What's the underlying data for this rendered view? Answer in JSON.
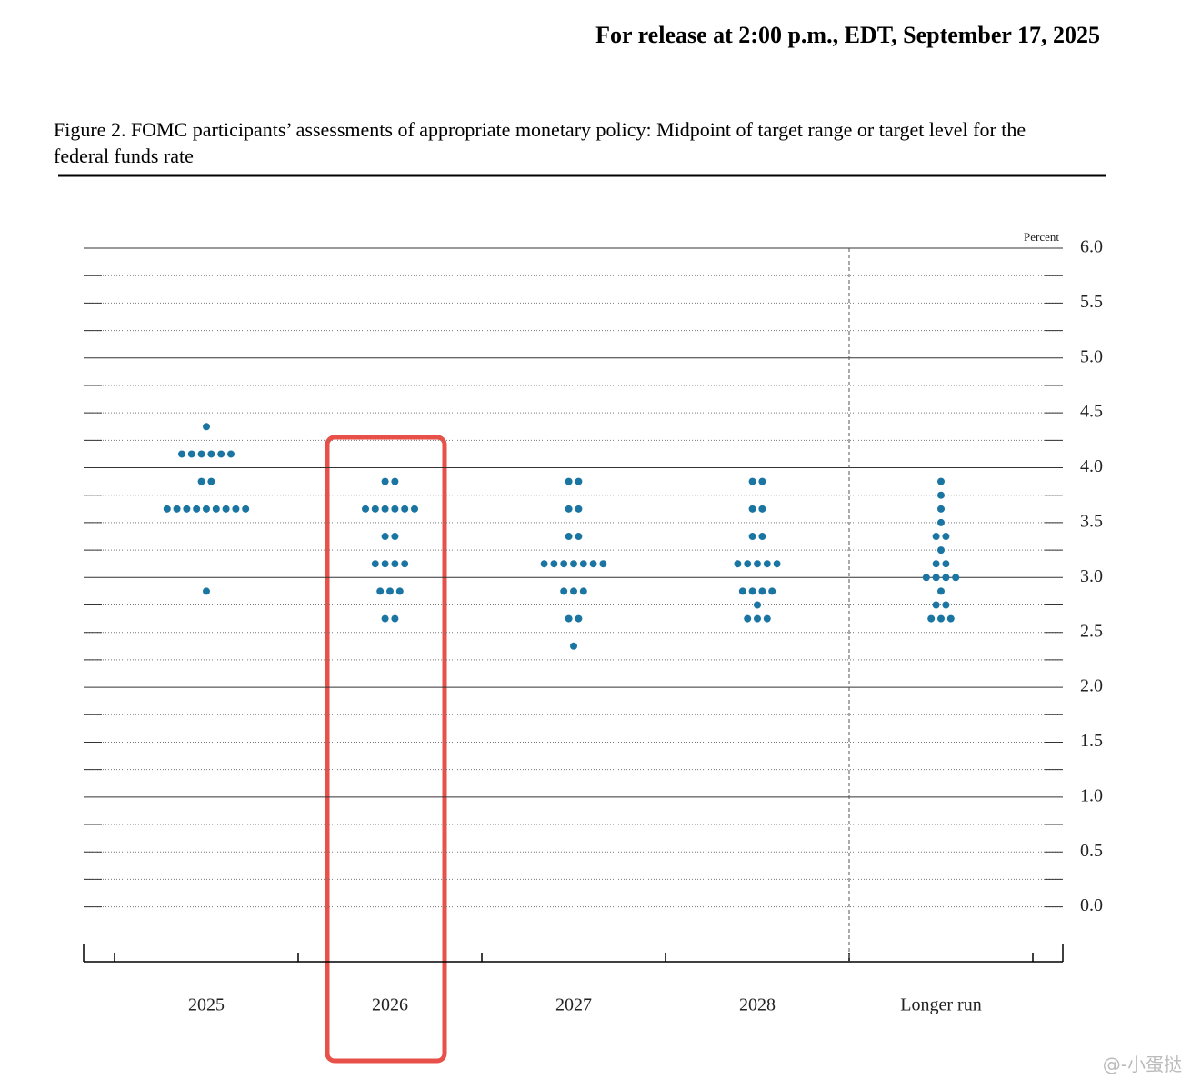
{
  "header": "For release at 2:00 p.m., EDT, September 17, 2025",
  "chart_data": {
    "type": "dot",
    "title": "Figure 2. FOMC participants’ assessments of appropriate monetary policy: Midpoint of target range or target level for the federal funds rate",
    "y_axis_label": "Percent",
    "categories": [
      "2025",
      "2026",
      "2027",
      "2028",
      "Longer run"
    ],
    "values": [
      [
        4.375,
        4.125,
        4.125,
        4.125,
        4.125,
        4.125,
        4.125,
        3.875,
        3.875,
        3.625,
        3.625,
        3.625,
        3.625,
        3.625,
        3.625,
        3.625,
        3.625,
        3.625,
        2.875
      ],
      [
        3.875,
        3.875,
        3.625,
        3.625,
        3.625,
        3.625,
        3.625,
        3.625,
        3.375,
        3.375,
        3.125,
        3.125,
        3.125,
        3.125,
        2.875,
        2.875,
        2.875,
        2.625,
        2.625
      ],
      [
        3.875,
        3.875,
        3.625,
        3.625,
        3.375,
        3.375,
        3.125,
        3.125,
        3.125,
        3.125,
        3.125,
        3.125,
        3.125,
        2.875,
        2.875,
        2.875,
        2.625,
        2.625,
        2.375
      ],
      [
        3.875,
        3.875,
        3.625,
        3.625,
        3.375,
        3.375,
        3.125,
        3.125,
        3.125,
        3.125,
        3.125,
        2.875,
        2.875,
        2.875,
        2.875,
        2.75,
        2.625,
        2.625,
        2.625
      ],
      [
        3.875,
        3.75,
        3.625,
        3.5,
        3.375,
        3.375,
        3.25,
        3.125,
        3.125,
        3.0,
        3.0,
        3.0,
        3.0,
        2.875,
        2.75,
        2.75,
        2.625,
        2.625,
        2.625
      ]
    ],
    "color": "#1b75a3",
    "ylim": [
      -0.5,
      6
    ],
    "yticks": [
      {
        "value": 0,
        "label": "0.0"
      },
      {
        "value": 0.5,
        "label": "0.5"
      },
      {
        "value": 1,
        "label": "1.0"
      },
      {
        "value": 1.5,
        "label": "1.5"
      },
      {
        "value": 2,
        "label": "2.0"
      },
      {
        "value": 2.5,
        "label": "2.5"
      },
      {
        "value": 3,
        "label": "3.0"
      },
      {
        "value": 3.5,
        "label": "3.5"
      },
      {
        "value": 4,
        "label": "4.0"
      },
      {
        "value": 4.5,
        "label": "4.5"
      },
      {
        "value": 5,
        "label": "5.0"
      },
      {
        "value": 5.5,
        "label": "5.5"
      },
      {
        "value": 6,
        "label": "6.0"
      }
    ],
    "solid_gridlines": [
      1,
      2,
      3,
      4,
      5,
      6
    ],
    "minor_yticks": [
      0,
      0.25,
      0.5,
      0.75,
      1.25,
      1.5,
      1.75,
      2.25,
      2.5,
      2.75,
      3.25,
      3.5,
      3.75,
      4.25,
      4.5,
      4.75,
      5.25,
      5.5,
      5.75
    ],
    "grid": true
  },
  "watermark": "@-小蛋挞"
}
